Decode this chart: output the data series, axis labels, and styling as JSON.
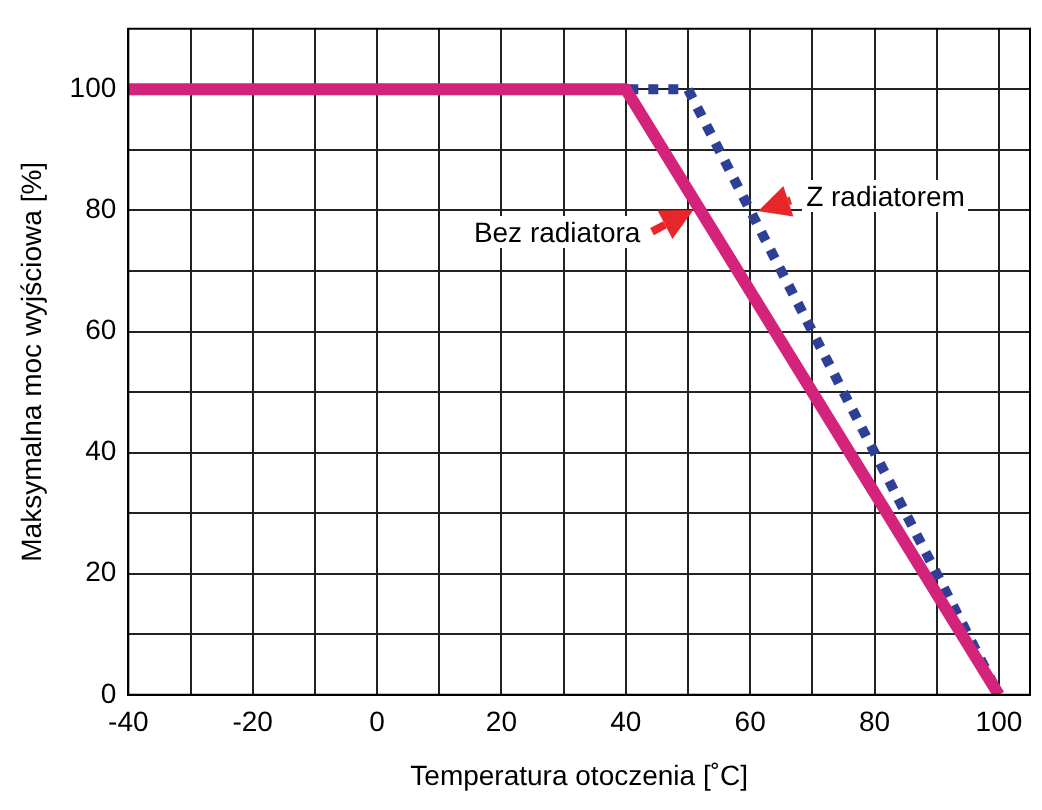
{
  "chart_data": {
    "type": "line",
    "xlabel": "Temperatura otoczenia [˚C]",
    "ylabel": "Maksymalna moc wyjściowa [%]",
    "xlim": [
      -40,
      105
    ],
    "xticks": [
      -40,
      {
        "value": -30,
        "label": null
      },
      -20,
      {
        "value": -10,
        "label": null
      },
      0,
      {
        "value": 10,
        "label": null
      },
      20,
      {
        "value": 30,
        "label": null
      },
      40,
      {
        "value": 50,
        "label": null
      },
      60,
      {
        "value": 70,
        "label": null
      },
      80,
      {
        "value": 90,
        "label": null
      },
      100
    ],
    "ylim": [
      0,
      110
    ],
    "yticks": [
      0,
      {
        "value": 10,
        "label": null
      },
      20,
      {
        "value": 30,
        "label": null
      },
      40,
      {
        "value": 50,
        "label": null
      },
      60,
      {
        "value": 70,
        "label": null
      },
      80,
      {
        "value": 90,
        "label": null
      },
      100
    ],
    "grid": true,
    "legend": false,
    "marker": "none",
    "series": [
      {
        "color": "#d4237a",
        "line_style": "solid",
        "x": [
          -40,
          40,
          100
        ],
        "values": [
          100,
          100,
          0
        ]
      },
      {
        "color": "#2e3f96",
        "line_style": "dotted",
        "x": [
          -40,
          50,
          100
        ],
        "values": [
          100,
          100,
          0
        ]
      }
    ],
    "annotations": [
      {
        "text": "Z radiatorem",
        "x": 60,
        "y": 80
      },
      {
        "text": "Bez radiatora",
        "x": 52,
        "y": 80
      }
    ]
  }
}
